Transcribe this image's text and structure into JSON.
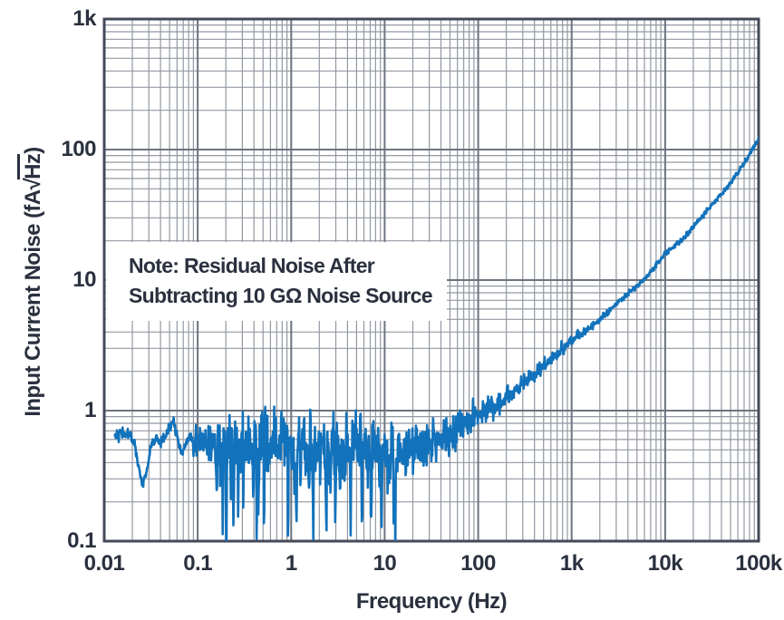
{
  "figure": {
    "note_line1": "Note: Residual Noise After",
    "note_line2": "Subtracting 10 GΩ Noise Source",
    "xlabel": "Frequency (Hz)",
    "ylabel_prefix": "Input Current Noise (fA",
    "ylabel_radical": "√",
    "ylabel_under_radical": "Hz",
    "ylabel_suffix": ")"
  },
  "chart_data": {
    "type": "line",
    "title": "",
    "annotation": "Note: Residual Noise After Subtracting 10 GΩ Noise Source",
    "xlabel": "Frequency (Hz)",
    "ylabel": "Input Current Noise (fA√Hz)",
    "x_scale": "log",
    "y_scale": "log",
    "xlim": [
      0.01,
      100000
    ],
    "ylim": [
      0.1,
      1000
    ],
    "grid": "log-major-minor",
    "legend": "none",
    "x_ticks": [
      {
        "v": 0.01,
        "label": "0.01"
      },
      {
        "v": 0.1,
        "label": "0.1"
      },
      {
        "v": 1,
        "label": "1"
      },
      {
        "v": 10,
        "label": "10"
      },
      {
        "v": 100,
        "label": "100"
      },
      {
        "v": 1000,
        "label": "1k"
      },
      {
        "v": 10000,
        "label": "10k"
      },
      {
        "v": 100000,
        "label": "100k"
      }
    ],
    "y_ticks": [
      {
        "v": 1000,
        "label": "1k"
      },
      {
        "v": 100,
        "label": "100"
      },
      {
        "v": 10,
        "label": "10"
      },
      {
        "v": 1,
        "label": "1"
      },
      {
        "v": 0.1,
        "label": "0.1"
      }
    ],
    "series": [
      {
        "name": "input-current-noise",
        "color": "#1272bb",
        "trend_points": [
          [
            0.013,
            0.67
          ],
          [
            0.018,
            0.66
          ],
          [
            0.021,
            0.58
          ],
          [
            0.024,
            0.33
          ],
          [
            0.026,
            0.26
          ],
          [
            0.029,
            0.38
          ],
          [
            0.032,
            0.55
          ],
          [
            0.036,
            0.62
          ],
          [
            0.04,
            0.55
          ],
          [
            0.044,
            0.63
          ],
          [
            0.05,
            0.74
          ],
          [
            0.055,
            0.83
          ],
          [
            0.062,
            0.58
          ],
          [
            0.068,
            0.46
          ],
          [
            0.08,
            0.62
          ],
          [
            0.1,
            0.56
          ],
          [
            0.15,
            0.55
          ],
          [
            0.2,
            0.52
          ],
          [
            0.3,
            0.56
          ],
          [
            0.5,
            0.54
          ],
          [
            0.7,
            0.55
          ],
          [
            1,
            0.55
          ],
          [
            1.5,
            0.52
          ],
          [
            2,
            0.54
          ],
          [
            3,
            0.5
          ],
          [
            5,
            0.52
          ],
          [
            7,
            0.48
          ],
          [
            10,
            0.46
          ],
          [
            13,
            0.44
          ],
          [
            16,
            0.47
          ],
          [
            20,
            0.5
          ],
          [
            25,
            0.53
          ],
          [
            30,
            0.56
          ],
          [
            40,
            0.6
          ],
          [
            50,
            0.66
          ],
          [
            70,
            0.76
          ],
          [
            100,
            0.92
          ],
          [
            130,
            1.05
          ],
          [
            150,
            1.02
          ],
          [
            200,
            1.25
          ],
          [
            300,
            1.6
          ],
          [
            500,
            2.2
          ],
          [
            700,
            2.7
          ],
          [
            1000,
            3.4
          ],
          [
            1500,
            4.2
          ],
          [
            2000,
            5.0
          ],
          [
            3000,
            6.6
          ],
          [
            5000,
            9.0
          ],
          [
            7000,
            11.5
          ],
          [
            10000,
            16
          ],
          [
            15000,
            20
          ],
          [
            20000,
            26
          ],
          [
            30000,
            36
          ],
          [
            50000,
            55
          ],
          [
            70000,
            78
          ],
          [
            100000,
            122
          ]
        ],
        "noise_model": {
          "seed": 42,
          "samples": 1500,
          "f_start": 0.013,
          "f_end": 100000,
          "smooth_below_hz": 0.09,
          "pre_band_sigma": 0.02,
          "mid_sigma": 0.07,
          "noisy_band": [
            0.15,
            13
          ],
          "low_sigma": 0.13,
          "sigma_rolloff_exp": 0.45,
          "min_sigma": 0.01,
          "spike_probability": 0.08,
          "spike_depth_decades": [
            0.25,
            0.75
          ],
          "clamp_min": 0.092
        }
      }
    ],
    "colors": {
      "line": "#1272bb",
      "grid_major": "#6d7480",
      "grid_minor": "#9298a2",
      "border": "#434a58",
      "text": "#2a303e",
      "background": "#ffffff"
    }
  }
}
